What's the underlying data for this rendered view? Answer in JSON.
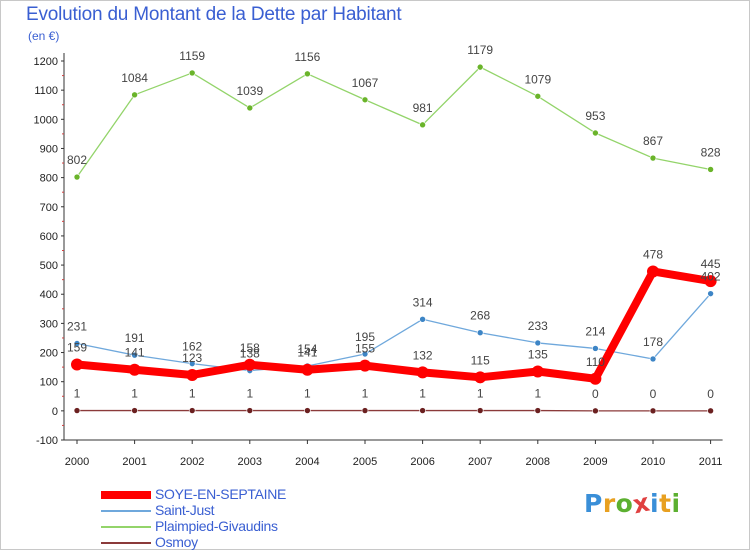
{
  "header": {
    "title": "Evolution du Montant de la Dette par Habitant",
    "subtitle": "(en €)"
  },
  "logo": {
    "text": "Proxiti",
    "letters": [
      "P",
      "r",
      "o",
      "x",
      "i",
      "t",
      "i"
    ],
    "colors": [
      "#3a8fd8",
      "#e8a020",
      "#5cb030",
      "#e04040",
      "#3a8fd8",
      "#e8a020",
      "#5cb030"
    ]
  },
  "chart_data": {
    "type": "line",
    "title": "Evolution du Montant de la Dette par Habitant",
    "subtitle": "(en €)",
    "xlabel": "",
    "ylabel": "",
    "x": [
      "2000",
      "2001",
      "2002",
      "2003",
      "2004",
      "2005",
      "2006",
      "2007",
      "2008",
      "2009",
      "2010",
      "2011"
    ],
    "ylim": [
      -100,
      1200
    ],
    "yticks": [
      -100,
      0,
      100,
      200,
      300,
      400,
      500,
      600,
      700,
      800,
      900,
      1000,
      1100,
      1200
    ],
    "grid": false,
    "legend_position": "bottom-left",
    "series": [
      {
        "name": "SOYE-EN-SEPTAINE",
        "color": "#ff0000",
        "marker": "#ff0000",
        "values": [
          159,
          141,
          123,
          158,
          141,
          155,
          132,
          115,
          135,
          110,
          478,
          445
        ]
      },
      {
        "name": "Saint-Just",
        "color": "#6fa8dc",
        "marker": "#3d85c6",
        "values": [
          231,
          191,
          162,
          138,
          154,
          195,
          314,
          268,
          233,
          214,
          178,
          402
        ]
      },
      {
        "name": "Plaimpied-Givaudins",
        "color": "#93d46a",
        "marker": "#6ab42a",
        "values": [
          802,
          1084,
          1159,
          1039,
          1156,
          1067,
          981,
          1179,
          1079,
          953,
          867,
          828
        ]
      },
      {
        "name": "Osmoy",
        "color": "#8b3a3a",
        "marker": "#6b2020",
        "values": [
          1,
          1,
          1,
          1,
          1,
          1,
          1,
          1,
          1,
          0,
          0,
          0
        ]
      }
    ],
    "labels": [
      [
        "159",
        "141",
        "123",
        "158",
        "141",
        "155",
        "132",
        "115",
        "135",
        "110",
        "478",
        "445"
      ],
      [
        "231",
        "191",
        "162",
        "138",
        "154",
        "195",
        "314",
        "268",
        "233",
        "214",
        "178",
        "402"
      ],
      [
        "802",
        "1084",
        "1159",
        "1039",
        "1156",
        "1067",
        "981",
        "1179",
        "1079",
        "953",
        "867",
        "828"
      ],
      [
        "1",
        "1",
        "1",
        "1",
        "1",
        "1",
        "1",
        "1",
        "1",
        "0",
        "0",
        "0"
      ]
    ]
  }
}
